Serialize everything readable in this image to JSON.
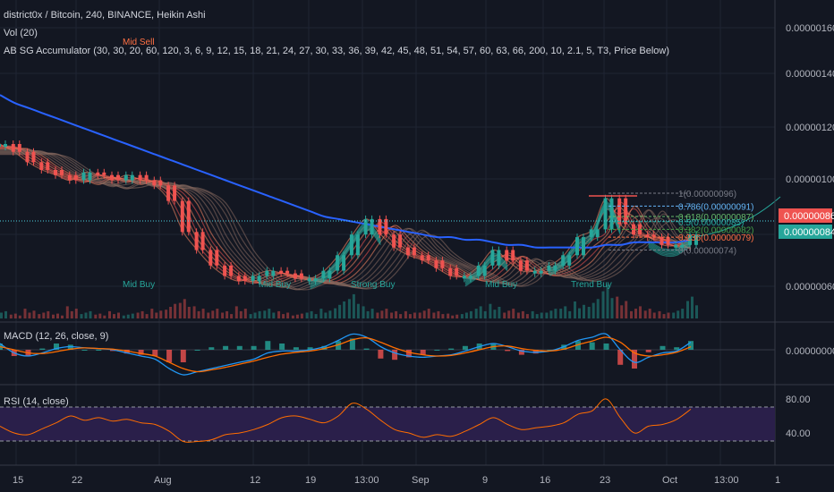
{
  "header": {
    "symbol_line": "district0x / Bitcoin, 240, BINANCE, Heikin Ashi",
    "volume_line": "Vol (20)",
    "accumulator_line": "AB SG Accumulator (30, 30, 20, 60, 120, 3, 6, 9, 12, 15, 18, 21, 24, 27, 30, 33, 36, 39, 42, 45, 48, 51, 54, 57, 60, 63, 66, 200, 10, 2.1, 5, T3, Price Below)"
  },
  "colors": {
    "background": "#131722",
    "grid": "#1f2433",
    "axis_text": "#b2b5be",
    "ribbon_up": "#26a69a",
    "ribbon_down": "#ef5350",
    "ma200": "#2962ff",
    "price_badge_red": "#ef5350",
    "price_badge_green": "#26a69a",
    "macd": "#2196f3",
    "signal": "#ff6d00",
    "rsi": "#ff6d00",
    "rsi_band": "#2a1f4a"
  },
  "price_axis": {
    "ticks": [
      "0.00000160",
      "0.00000140",
      "0.00000120",
      "0.00000100",
      "0.00000060"
    ],
    "badge_red": "0.00000086",
    "badge_green": "0.00000084"
  },
  "macd_axis": {
    "ticks": [
      "0.00000000"
    ]
  },
  "rsi_axis": {
    "ticks": [
      "80.00",
      "40.00"
    ]
  },
  "time_axis": {
    "labels": [
      "15",
      "22",
      "Aug",
      "12",
      "19",
      "13:00",
      "Sep",
      "9",
      "16",
      "23",
      "Oct",
      "13:00",
      "1"
    ]
  },
  "signals": {
    "mid_sell": "Mid Sell",
    "mid_buy_1": "Mid Buy",
    "mid_buy_2": "Mid Buy",
    "strong_buy": "Strong Buy",
    "mid_buy_3": "Mid Buy",
    "trend_buy": "Trend Buy"
  },
  "fib_levels": [
    {
      "ratio": "1",
      "label": "1(0.00000096)",
      "value": 9.6e-07
    },
    {
      "ratio": "0.786",
      "label": "0.786(0.00000091)",
      "value": 9.1e-07
    },
    {
      "ratio": "0.618",
      "label": "0.618(0.00000087)",
      "value": 8.7e-07
    },
    {
      "ratio": "0.5",
      "label": "0.5(0.00000085)",
      "value": 8.5e-07
    },
    {
      "ratio": "0.382",
      "label": "0.382(0.00000082)",
      "value": 8.2e-07
    },
    {
      "ratio": "0.236",
      "label": "0.236(0.00000079)",
      "value": 7.9e-07
    },
    {
      "ratio": "0",
      "label": "0(0.00000074)",
      "value": 7.4e-07
    }
  ],
  "macd_panel": {
    "label": "MACD (12, 26, close, 9)"
  },
  "rsi_panel": {
    "label": "RSI (14, close)",
    "upper": 70,
    "lower": 30
  },
  "chart_data": {
    "type": "line",
    "title": "district0x / Bitcoin, 240, BINANCE, Heikin Ashi",
    "ylim": [
      4.5e-07,
      1.65e-06
    ],
    "x": [
      0,
      1,
      2,
      3,
      4,
      5,
      6,
      7,
      8,
      9,
      10,
      11,
      12,
      13,
      14,
      15,
      16,
      17,
      18,
      19,
      20,
      21,
      22,
      23,
      24,
      25,
      26,
      27,
      28,
      29,
      30,
      31,
      32,
      33,
      34,
      35,
      36,
      37,
      38,
      39,
      40,
      41,
      42,
      43,
      44,
      45,
      46,
      47,
      48,
      49
    ],
    "series": [
      {
        "values": [
          1.15e-06,
          1.12e-06,
          1.08e-06,
          1.05e-06,
          1.03e-06,
          1.01e-06,
          1.04e-06,
          1.03e-06,
          1.01e-06,
          1.03e-06,
          1.01e-06,
          9.9e-07,
          9.3e-07,
          8.1e-07,
          7.4e-07,
          6.8e-07,
          6.4e-07,
          6.2e-07,
          6.4e-07,
          6.6e-07,
          6.5e-07,
          6.3e-07,
          6.3e-07,
          6.6e-07,
          7.2e-07,
          8e-07,
          8.6e-07,
          8e-07,
          7.5e-07,
          7.2e-07,
          7e-07,
          6.7e-07,
          6.4e-07,
          6.4e-07,
          6.8e-07,
          7.4e-07,
          7e-07,
          6.6e-07,
          6.6e-07,
          6.8e-07,
          7.2e-07,
          7.9e-07,
          8.2e-07,
          9.4e-07,
          8.4e-07,
          8e-07,
          7.9e-07,
          7.6e-07,
          7.6e-07,
          8e-07
        ]
      },
      {
        "values": [
          1.34e-06,
          1.31e-06,
          1.29e-06,
          1.27e-06,
          1.25e-06,
          1.23e-06,
          1.21e-06,
          1.19e-06,
          1.17e-06,
          1.15e-06,
          1.13e-06,
          1.11e-06,
          1.09e-06,
          1.07e-06,
          1.05e-06,
          1.03e-06,
          1.01e-06,
          9.9e-07,
          9.7e-07,
          9.5e-07,
          9.3e-07,
          9.1e-07,
          8.9e-07,
          8.7e-07,
          8.6e-07,
          8.5e-07,
          8.4e-07,
          8.3e-07,
          8.2e-07,
          8.1e-07,
          8e-07,
          7.9e-07,
          7.9e-07,
          7.8e-07,
          7.8e-07,
          7.7e-07,
          7.6e-07,
          7.6e-07,
          7.5e-07,
          7.5e-07,
          7.5e-07,
          7.5e-07,
          7.5e-07,
          7.6e-07,
          7.6e-07,
          7.7e-07,
          7.7e-07,
          7.7e-07,
          7.7e-07,
          7.8e-07
        ]
      }
    ],
    "volume": [
      3,
      2,
      4,
      3,
      2,
      5,
      3,
      2,
      3,
      2,
      3,
      4,
      6,
      8,
      5,
      4,
      3,
      5,
      3,
      4,
      3,
      2,
      3,
      4,
      7,
      10,
      5,
      4,
      3,
      3,
      4,
      3,
      2,
      3,
      5,
      6,
      4,
      3,
      3,
      4,
      5,
      7,
      8,
      14,
      9,
      5,
      4,
      3,
      4,
      9
    ],
    "macd": [
      1,
      -0.5,
      -1,
      -0.5,
      0.2,
      0.5,
      0.3,
      0.2,
      0,
      -0.5,
      -1,
      -1.5,
      -3,
      -4,
      -3.5,
      -3,
      -2.5,
      -2,
      -1.5,
      -0.5,
      -0.2,
      -0.2,
      0,
      0.5,
      1.5,
      2.5,
      2,
      0.5,
      -0.5,
      -1,
      -1.2,
      -1,
      -0.8,
      -0.2,
      0.5,
      1,
      0.5,
      -0.2,
      -0.4,
      -0.2,
      0.5,
      1.5,
      2,
      2.5,
      0,
      -2,
      -1.2,
      -0.5,
      -0.2,
      1.2
    ],
    "signal": [
      0.5,
      0,
      -0.5,
      -0.6,
      -0.3,
      0.1,
      0.3,
      0.2,
      0.1,
      -0.2,
      -0.6,
      -1,
      -2,
      -3,
      -3.5,
      -3.2,
      -2.8,
      -2.3,
      -1.8,
      -1.2,
      -0.7,
      -0.4,
      -0.2,
      0.2,
      0.8,
      1.6,
      1.9,
      1.2,
      0.3,
      -0.4,
      -0.8,
      -1,
      -0.9,
      -0.5,
      0,
      0.5,
      0.6,
      0.2,
      -0.1,
      -0.2,
      0.1,
      0.8,
      1.4,
      2,
      1.2,
      -0.5,
      -1,
      -0.8,
      -0.4,
      0.5
    ],
    "rsi": [
      48,
      40,
      38,
      45,
      52,
      60,
      55,
      58,
      54,
      56,
      52,
      50,
      42,
      30,
      30,
      32,
      38,
      40,
      44,
      50,
      58,
      60,
      56,
      52,
      60,
      75,
      68,
      55,
      44,
      40,
      35,
      38,
      36,
      42,
      50,
      58,
      50,
      44,
      46,
      48,
      52,
      62,
      66,
      80,
      58,
      40,
      48,
      50,
      56,
      68
    ]
  }
}
